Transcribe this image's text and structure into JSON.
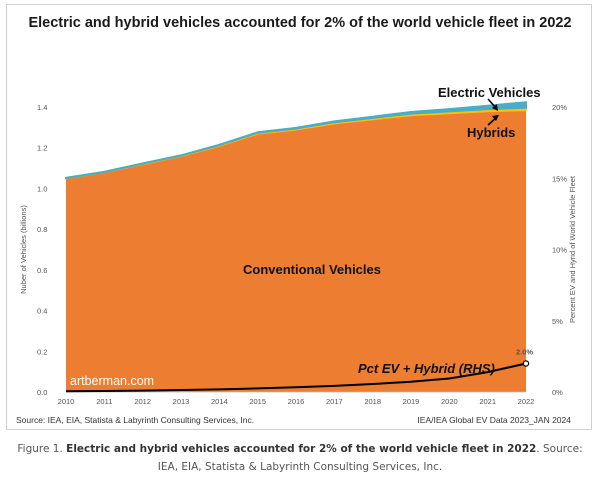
{
  "caption": {
    "prefix": "Figure 1. ",
    "bold": "Electric and hybrid vehicles accounted for 2% of the world vehicle fleet in 2022",
    "suffix": ". Source:  IEA, EIA, Statista & Labyrinth Consulting Services, Inc."
  },
  "chart_data": {
    "type": "area",
    "title": "Electric and hybrid vehicles accounted for 2% of the world vehicle fleet in 2022",
    "x": [
      2010,
      2011,
      2012,
      2013,
      2014,
      2015,
      2016,
      2017,
      2018,
      2019,
      2020,
      2021,
      2022
    ],
    "x_ticks": [
      "2010",
      "2011",
      "2012",
      "2013",
      "2014",
      "2015",
      "2016",
      "2017",
      "2018",
      "2019",
      "2020",
      "2021",
      "2022"
    ],
    "ylabel": "Nuber of Vehicles (billions)",
    "ylim": [
      0,
      1.4
    ],
    "y_ticks": [
      "0.0",
      "0.2",
      "0.4",
      "0.6",
      "0.8",
      "1.0",
      "1.2",
      "1.4"
    ],
    "y_tick_values": [
      0,
      0.2,
      0.4,
      0.6,
      0.8,
      1.0,
      1.2,
      1.4
    ],
    "y2label": "Percent EV and Hyrid of World Vehicle Fleet",
    "y2lim": [
      0,
      20
    ],
    "y2_ticks": [
      "0%",
      "5%",
      "10%",
      "15%",
      "20%"
    ],
    "y2_tick_values": [
      0,
      5,
      10,
      15,
      20
    ],
    "series": [
      {
        "name": "Conventional Vehicles",
        "color": "#ed7d31",
        "stack": true,
        "values": [
          1.05,
          1.08,
          1.12,
          1.16,
          1.21,
          1.27,
          1.29,
          1.32,
          1.34,
          1.36,
          1.37,
          1.38,
          1.385
        ]
      },
      {
        "name": "Hybrids",
        "color": "#ffc000",
        "stack": true,
        "values": [
          0.001,
          0.001,
          0.002,
          0.002,
          0.003,
          0.004,
          0.005,
          0.006,
          0.007,
          0.008,
          0.009,
          0.01,
          0.012
        ]
      },
      {
        "name": "Electric Vehicles",
        "color": "#4bacc6",
        "stack": true,
        "values": [
          0.0,
          0.0,
          0.0,
          0.0,
          0.001,
          0.001,
          0.002,
          0.003,
          0.005,
          0.007,
          0.01,
          0.016,
          0.026
        ]
      },
      {
        "name": "Pct EV + Hybrid (RHS)",
        "color": "#000000",
        "axis": "right",
        "values": [
          0.05,
          0.07,
          0.1,
          0.14,
          0.18,
          0.25,
          0.33,
          0.43,
          0.56,
          0.72,
          0.95,
          1.4,
          2.0
        ]
      }
    ],
    "annotations": [
      {
        "text": "2.0%",
        "x": 2022,
        "series": "Pct EV + Hybrid (RHS)"
      },
      {
        "text": "artberman.com"
      }
    ],
    "footer_left": "Source:  IEA, EIA, Statista & Labyrinth Consulting Services, Inc.",
    "footer_right": "IEA/IEA Global EV Data 2023_JAN 2024"
  }
}
